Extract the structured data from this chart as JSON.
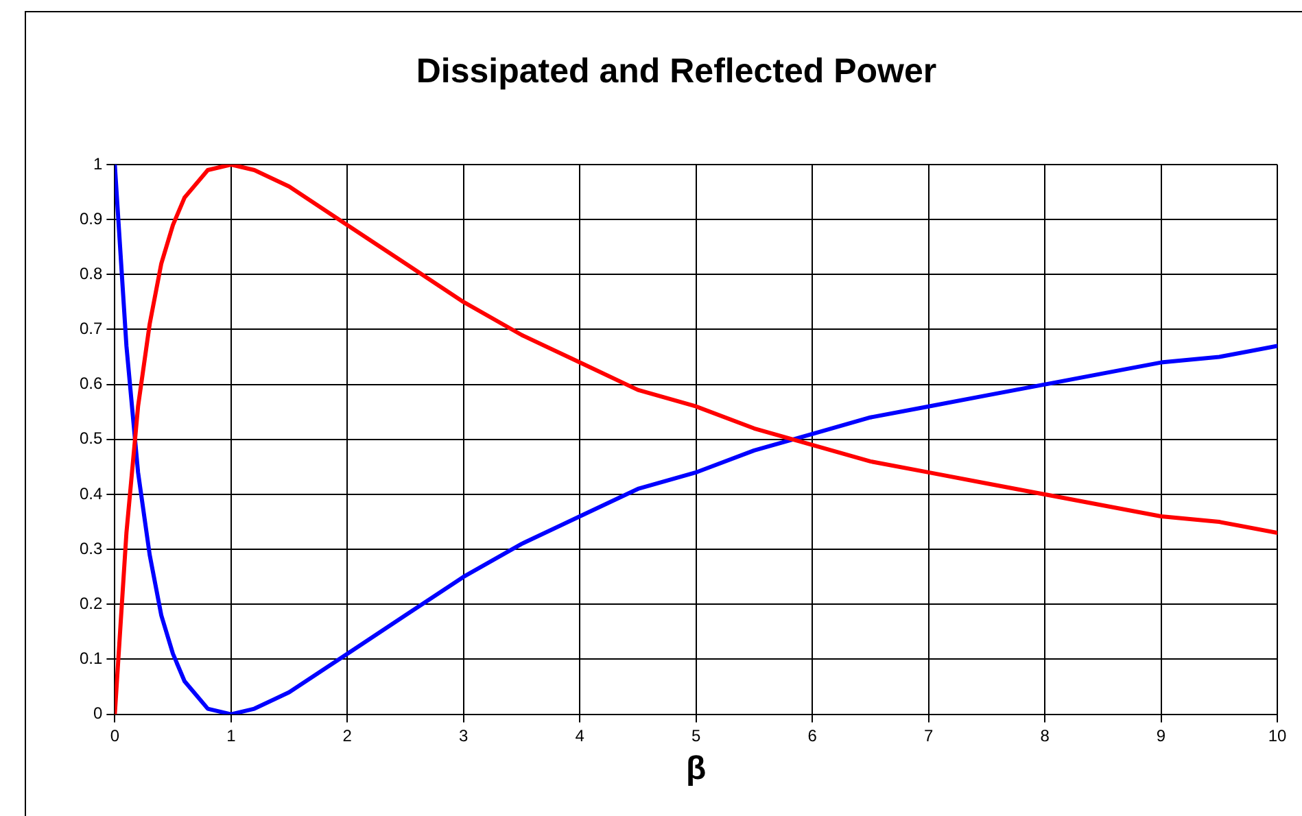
{
  "chart_data": {
    "type": "line",
    "title": "Dissipated and Reflected Power",
    "xlabel": "β",
    "x": [
      0,
      0.1,
      0.2,
      0.3,
      0.4,
      0.5,
      0.6,
      0.8,
      1,
      1.2,
      1.5,
      2,
      2.5,
      3,
      3.5,
      4,
      4.5,
      5,
      5.5,
      6,
      6.5,
      7,
      7.5,
      8,
      8.5,
      9,
      9.5,
      10
    ],
    "series": [
      {
        "color": "#ff0000",
        "values": [
          0,
          0.33,
          0.56,
          0.71,
          0.82,
          0.89,
          0.94,
          0.99,
          1,
          0.99,
          0.96,
          0.89,
          0.82,
          0.75,
          0.69,
          0.64,
          0.59,
          0.56,
          0.52,
          0.49,
          0.46,
          0.44,
          0.42,
          0.4,
          0.38,
          0.36,
          0.35,
          0.33
        ]
      },
      {
        "color": "#0000ff",
        "values": [
          1,
          0.67,
          0.44,
          0.29,
          0.18,
          0.11,
          0.06,
          0.01,
          0,
          0.01,
          0.04,
          0.11,
          0.18,
          0.25,
          0.31,
          0.36,
          0.41,
          0.44,
          0.48,
          0.51,
          0.54,
          0.56,
          0.58,
          0.6,
          0.62,
          0.64,
          0.65,
          0.67
        ]
      }
    ],
    "xlim": [
      0,
      10
    ],
    "xticks": [
      0,
      1,
      2,
      3,
      4,
      5,
      6,
      7,
      8,
      9,
      10
    ],
    "ylim": [
      0,
      1
    ],
    "yticks": [
      0,
      0.1,
      0.2,
      0.3,
      0.4,
      0.5,
      0.6,
      0.7,
      0.8,
      0.9,
      1
    ],
    "grid": true,
    "legend": false,
    "marker": "none",
    "line_style": "solid"
  }
}
